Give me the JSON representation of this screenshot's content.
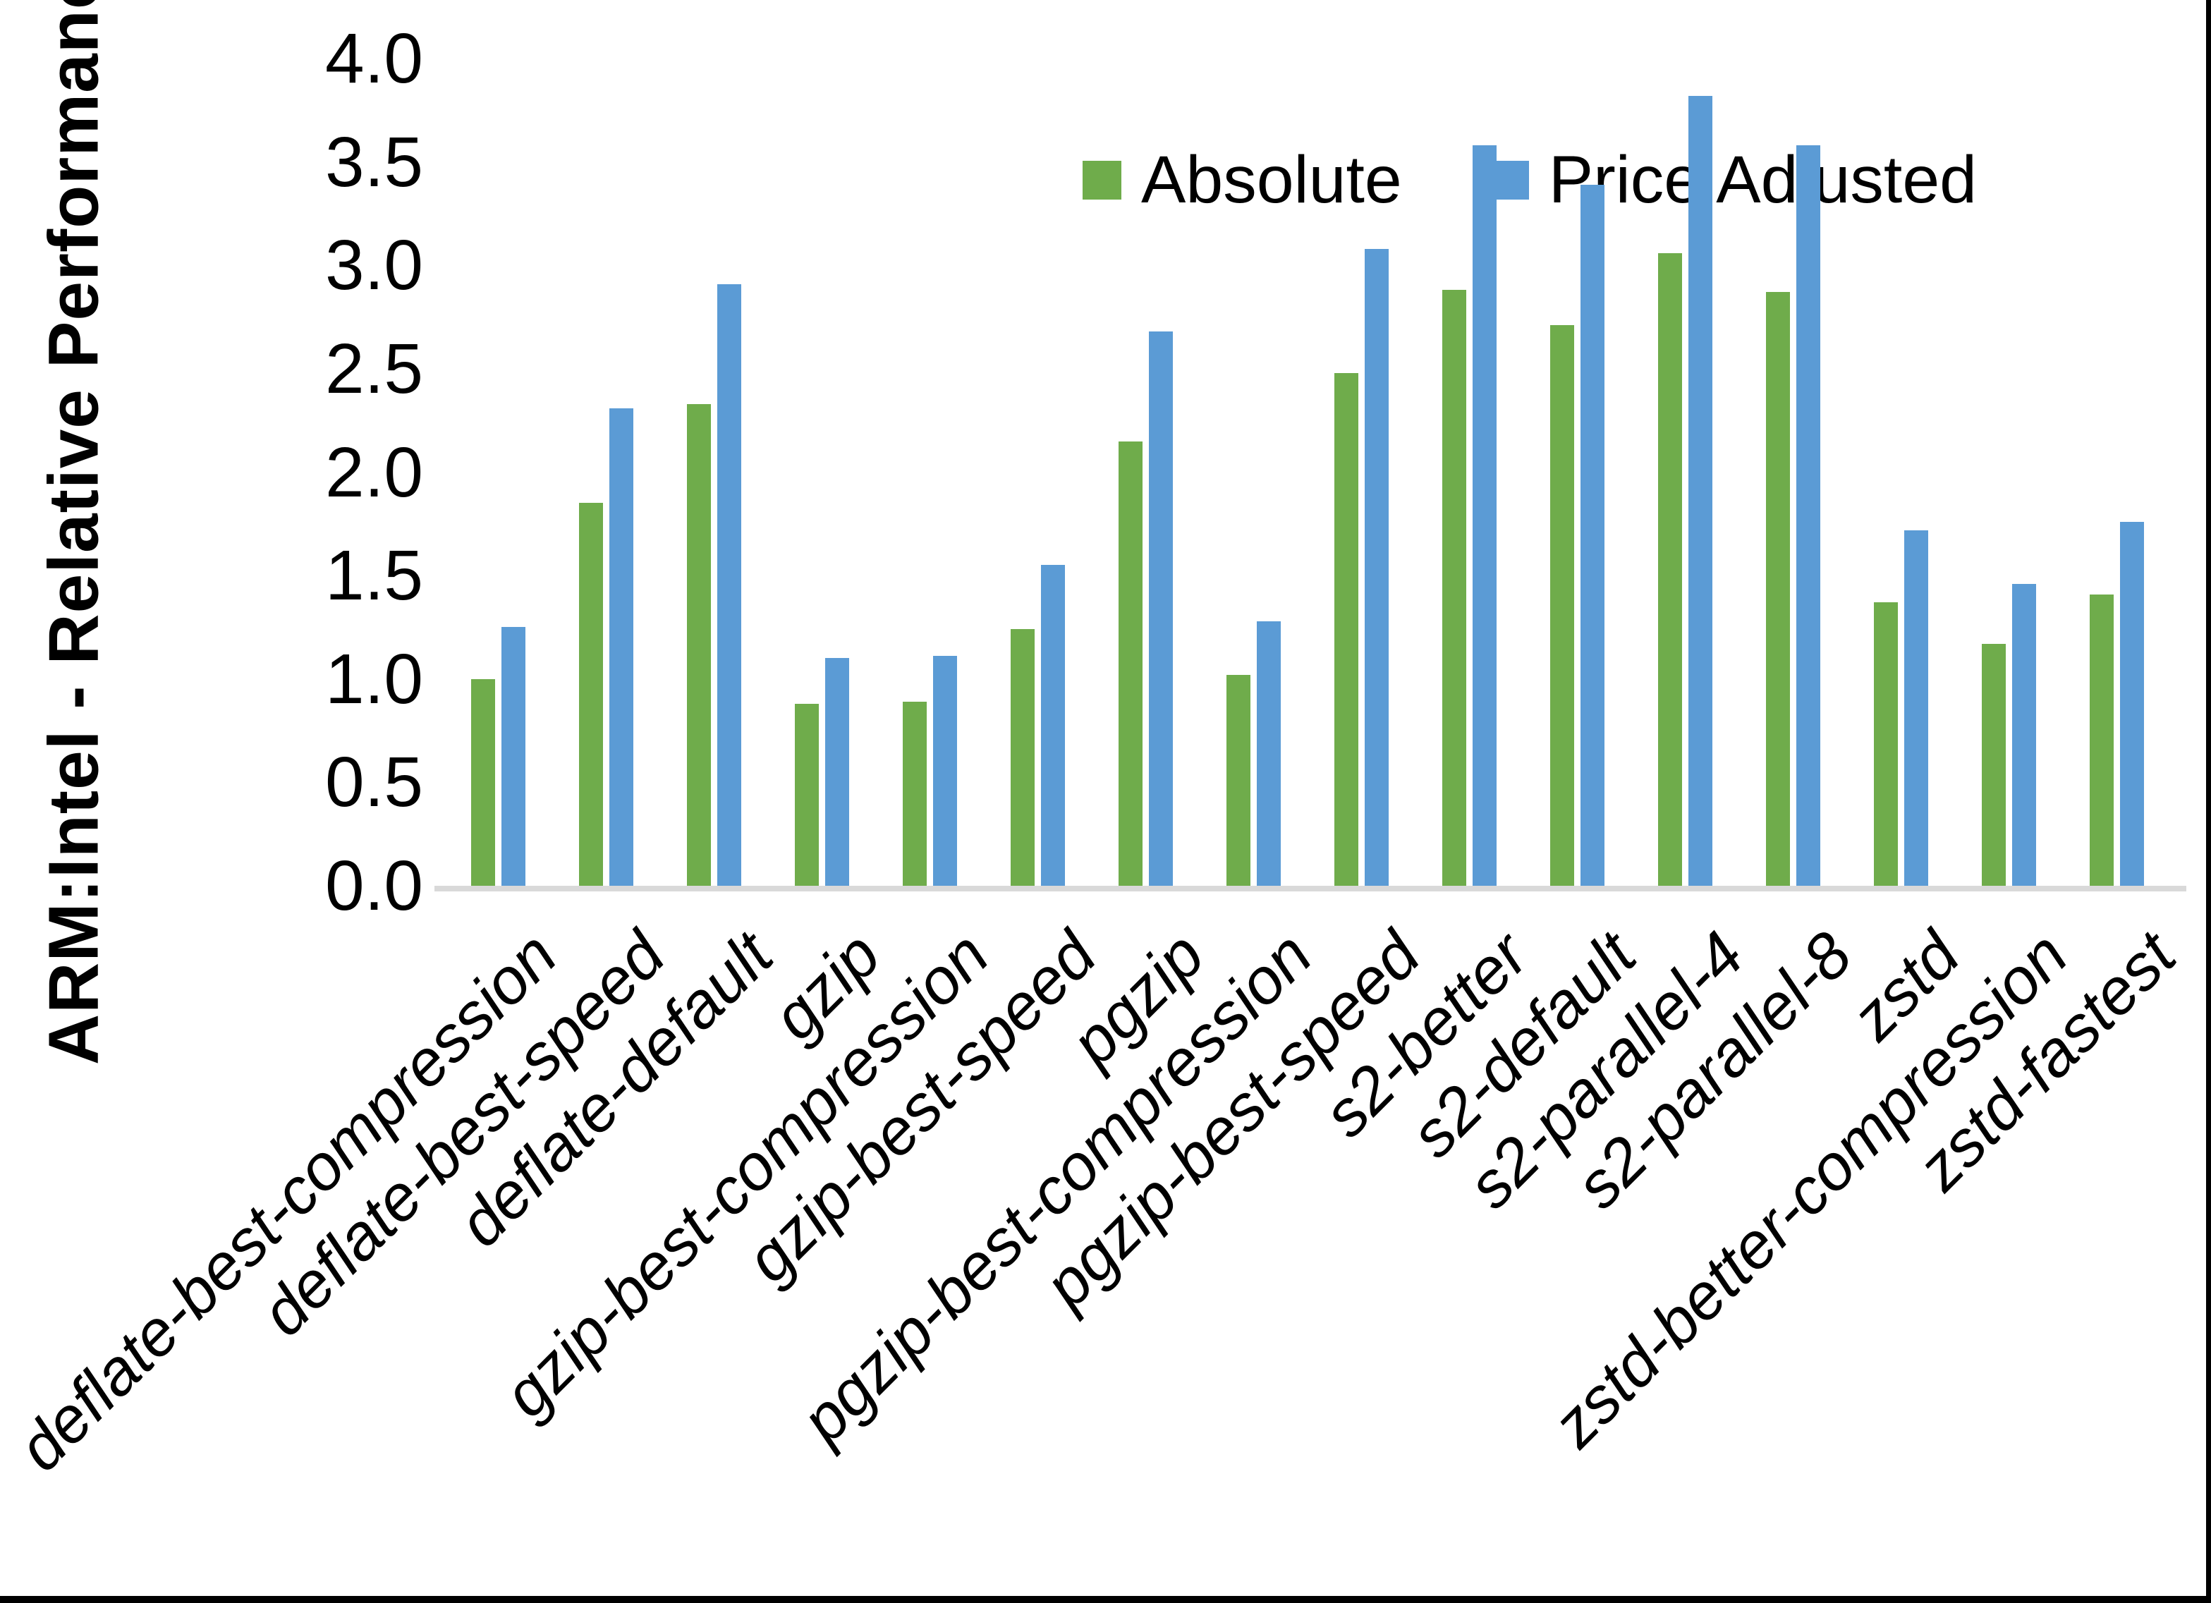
{
  "page": {
    "background": "#ffffff",
    "frame_border_color": "#000000"
  },
  "chart_data": {
    "type": "bar",
    "title": "",
    "ylabel": "ARM:Intel - Relative Performance",
    "xlabel": "",
    "ylim": [
      0.0,
      4.0
    ],
    "grid": false,
    "legend_position": "top-center",
    "axis_line_color": "#d9d9d9",
    "y_ticks": [
      "0.0",
      "0.5",
      "1.0",
      "1.5",
      "2.0",
      "2.5",
      "3.0",
      "3.5",
      "4.0"
    ],
    "categories": [
      "deflate-best-compression",
      "deflate-best-speed",
      "deflate-default",
      "gzip",
      "gzip-best-compression",
      "gzip-best-speed",
      "pgzip",
      "pgzip-best-compression",
      "pgzip-best-speed",
      "s2-better",
      "s2-default",
      "s2-parallel-4",
      "s2-parallel-8",
      "zstd",
      "zstd-better-compression",
      "zstd-fastest"
    ],
    "series": [
      {
        "name": "Absolute",
        "color": "#6fac4b",
        "values": [
          1.0,
          1.85,
          2.33,
          0.88,
          0.89,
          1.24,
          2.15,
          1.02,
          2.48,
          2.88,
          2.71,
          3.06,
          2.87,
          1.37,
          1.17,
          1.41
        ]
      },
      {
        "name": "Price Adjusted",
        "color": "#5b9bd5",
        "values": [
          1.25,
          2.31,
          2.91,
          1.1,
          1.11,
          1.55,
          2.68,
          1.28,
          3.08,
          3.58,
          3.39,
          3.82,
          3.58,
          1.72,
          1.46,
          1.76
        ]
      }
    ]
  }
}
